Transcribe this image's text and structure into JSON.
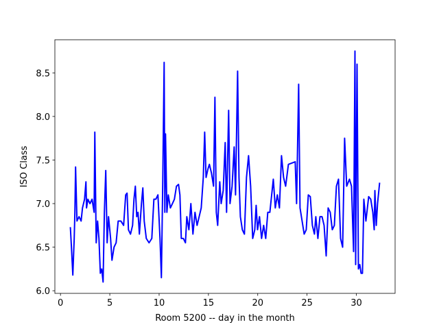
{
  "chart_data": {
    "type": "line",
    "xlabel": "Room 5200 -- day in the month",
    "ylabel": "ISO Class",
    "color": "#0000ff",
    "xlim": [
      -0.57,
      33.93
    ],
    "ylim": [
      5.97,
      8.88
    ],
    "xticks": [
      0,
      5,
      10,
      15,
      20,
      25,
      30
    ],
    "yticks": [
      {
        "value": 6.0,
        "label": "6.0"
      },
      {
        "value": 6.5,
        "label": "6.5"
      },
      {
        "value": 7.0,
        "label": "7.0"
      },
      {
        "value": 7.5,
        "label": "7.5"
      },
      {
        "value": 8.0,
        "label": "8.0"
      },
      {
        "value": 8.5,
        "label": "8.5"
      }
    ],
    "x": [
      1.0,
      1.11,
      1.25,
      1.39,
      1.46,
      1.53,
      1.67,
      1.88,
      2.09,
      2.23,
      2.44,
      2.58,
      2.64,
      2.78,
      2.99,
      3.2,
      3.41,
      3.48,
      3.62,
      3.76,
      3.9,
      4.04,
      4.18,
      4.32,
      4.45,
      4.59,
      4.73,
      4.87,
      5.08,
      5.22,
      5.43,
      5.64,
      5.85,
      6.12,
      6.4,
      6.61,
      6.75,
      6.89,
      7.1,
      7.31,
      7.45,
      7.59,
      7.73,
      7.86,
      8.0,
      8.21,
      8.35,
      8.49,
      8.7,
      8.98,
      9.26,
      9.47,
      9.67,
      9.88,
      10.09,
      10.23,
      10.37,
      10.51,
      10.58,
      10.65,
      10.79,
      10.93,
      11.14,
      11.35,
      11.55,
      11.76,
      11.97,
      12.11,
      12.25,
      12.46,
      12.67,
      12.81,
      13.02,
      13.22,
      13.43,
      13.64,
      13.85,
      14.06,
      14.27,
      14.48,
      14.62,
      14.76,
      14.96,
      15.1,
      15.31,
      15.52,
      15.66,
      15.8,
      15.94,
      16.15,
      16.29,
      16.5,
      16.7,
      16.84,
      17.05,
      17.19,
      17.4,
      17.61,
      17.75,
      17.96,
      18.1,
      18.24,
      18.44,
      18.65,
      18.86,
      19.07,
      19.28,
      19.49,
      19.7,
      19.84,
      19.98,
      20.18,
      20.39,
      20.6,
      20.81,
      21.02,
      21.23,
      21.58,
      21.78,
      21.99,
      22.2,
      22.41,
      22.62,
      22.83,
      23.11,
      23.8,
      23.94,
      24.15,
      24.29,
      24.5,
      24.71,
      24.92,
      25.13,
      25.33,
      25.54,
      25.75,
      25.89,
      26.1,
      26.31,
      26.52,
      26.73,
      26.94,
      27.14,
      27.35,
      27.56,
      27.77,
      27.98,
      28.19,
      28.4,
      28.61,
      28.81,
      29.02,
      29.3,
      29.51,
      29.72,
      29.86,
      29.93,
      30.07,
      30.21,
      30.35,
      30.48,
      30.62,
      30.76,
      30.97,
      31.25,
      31.46,
      31.67,
      31.81,
      31.88,
      32.02,
      32.15,
      32.36
    ],
    "values": [
      6.73,
      6.5,
      6.18,
      6.6,
      6.9,
      7.42,
      6.8,
      6.85,
      6.8,
      6.95,
      7.05,
      7.25,
      6.95,
      7.05,
      7.0,
      7.05,
      6.9,
      7.82,
      6.55,
      6.8,
      6.6,
      6.2,
      6.25,
      6.1,
      6.9,
      7.38,
      6.55,
      6.85,
      6.6,
      6.35,
      6.5,
      6.55,
      6.8,
      6.8,
      6.75,
      7.1,
      7.12,
      6.7,
      6.65,
      6.75,
      7.05,
      7.2,
      6.85,
      6.9,
      6.65,
      7.0,
      7.18,
      6.8,
      6.6,
      6.55,
      6.6,
      7.05,
      7.05,
      7.1,
      6.6,
      6.15,
      7.25,
      8.62,
      6.9,
      7.8,
      6.9,
      7.1,
      6.95,
      7.0,
      7.05,
      7.2,
      7.22,
      7.1,
      6.6,
      6.6,
      6.55,
      6.85,
      6.7,
      7.0,
      6.65,
      6.9,
      6.75,
      6.85,
      6.95,
      7.3,
      7.82,
      7.3,
      7.4,
      7.45,
      7.35,
      7.2,
      8.22,
      6.9,
      6.75,
      7.25,
      7.0,
      7.15,
      7.7,
      6.9,
      8.07,
      7.0,
      7.2,
      7.65,
      7.1,
      8.52,
      7.3,
      6.85,
      6.7,
      6.65,
      7.3,
      7.55,
      7.2,
      6.6,
      6.7,
      6.98,
      6.7,
      6.85,
      6.6,
      6.75,
      6.6,
      6.9,
      6.9,
      7.28,
      6.95,
      7.1,
      6.95,
      7.55,
      7.3,
      7.2,
      7.45,
      7.48,
      7.0,
      8.37,
      6.95,
      6.8,
      6.65,
      6.7,
      7.1,
      7.08,
      6.75,
      6.65,
      6.85,
      6.6,
      6.85,
      6.85,
      6.75,
      6.4,
      6.95,
      6.9,
      6.7,
      6.75,
      7.2,
      7.28,
      6.6,
      6.5,
      7.75,
      7.2,
      7.28,
      7.2,
      6.45,
      8.75,
      6.3,
      8.6,
      6.25,
      6.3,
      6.2,
      6.2,
      7.05,
      6.8,
      7.08,
      7.05,
      6.9,
      6.7,
      7.15,
      6.75,
      7.0,
      7.24
    ]
  }
}
